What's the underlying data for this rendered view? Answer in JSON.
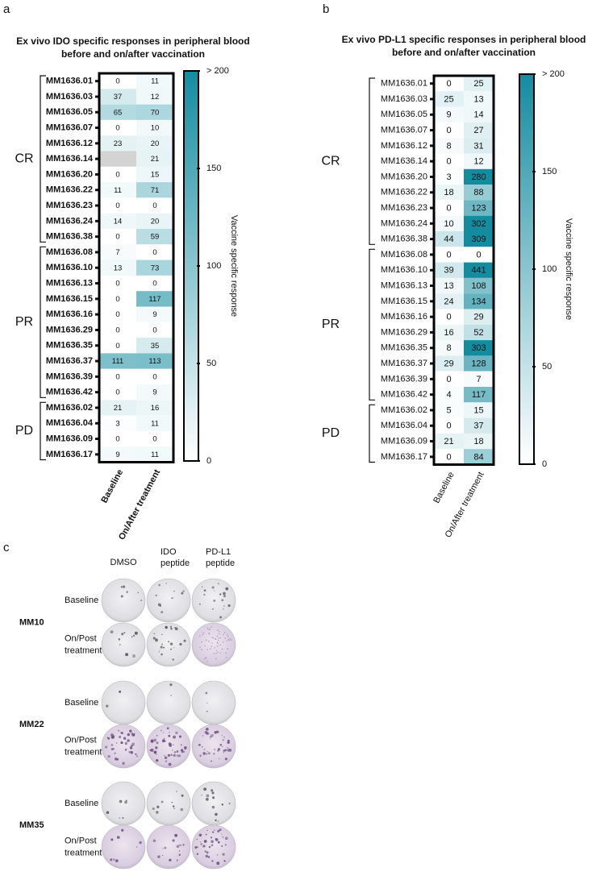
{
  "panel_labels": [
    "a",
    "b",
    "c"
  ],
  "chart_data": [
    {
      "type": "heatmap",
      "bold_labels": true,
      "title": [
        "Ex vivo IDO specific responses in peripheral blood",
        "before and on/after vaccination"
      ],
      "rows": [
        "MM1636.01",
        "MM1636.03",
        "MM1636.05",
        "MM1636.07",
        "MM1636.12",
        "MM1636.14",
        "MM1636.20",
        "MM1636.22",
        "MM1636.23",
        "MM1636.24",
        "MM1636.38",
        "MM1636.08",
        "MM1636.10",
        "MM1636.13",
        "MM1636.15",
        "MM1636.16",
        "MM1636.29",
        "MM1636.35",
        "MM1636.37",
        "MM1636.39",
        "MM1636.42",
        "MM1636.02",
        "MM1636.04",
        "MM1636.09",
        "MM1636.17"
      ],
      "row_groups": [
        "CR",
        "CR",
        "CR",
        "CR",
        "CR",
        "CR",
        "CR",
        "CR",
        "CR",
        "CR",
        "CR",
        "PR",
        "PR",
        "PR",
        "PR",
        "PR",
        "PR",
        "PR",
        "PR",
        "PR",
        "PR",
        "PD",
        "PD",
        "PD",
        "PD"
      ],
      "columns": [
        "Baseline",
        "On/After treatment"
      ],
      "values": [
        [
          0,
          11
        ],
        [
          37,
          12
        ],
        [
          65,
          70
        ],
        [
          0,
          10
        ],
        [
          23,
          20
        ],
        [
          null,
          21
        ],
        [
          0,
          15
        ],
        [
          11,
          71
        ],
        [
          0,
          0
        ],
        [
          14,
          20
        ],
        [
          0,
          59
        ],
        [
          7,
          0
        ],
        [
          13,
          73
        ],
        [
          0,
          0
        ],
        [
          0,
          117
        ],
        [
          0,
          9
        ],
        [
          0,
          0
        ],
        [
          0,
          35
        ],
        [
          111,
          113
        ],
        [
          0,
          0
        ],
        [
          0,
          9
        ],
        [
          21,
          16
        ],
        [
          3,
          11
        ],
        [
          0,
          0
        ],
        [
          9,
          11
        ]
      ],
      "clim": [
        0,
        200
      ],
      "colorbar_ticks": [
        0,
        50,
        100,
        150,
        {
          "value": 200,
          "label": "> 200"
        }
      ],
      "colorbar_label": "Vaccine specific response",
      "colors": [
        "#ffffff",
        "#148ca0"
      ],
      "missing_color": "#d3d3d3"
    },
    {
      "type": "heatmap",
      "bold_labels": false,
      "title": [
        "Ex vivo PD-L1 specific responses in peripheral blood",
        "before and on/after vaccination"
      ],
      "rows": [
        "MM1636.01",
        "MM1636.03",
        "MM1636.05",
        "MM1636.07",
        "MM1636.12",
        "MM1636.14",
        "MM1636.20",
        "MM1636.22",
        "MM1636.23",
        "MM1636.24",
        "MM1636.38",
        "MM1636.08",
        "MM1636.10",
        "MM1636.13",
        "MM1636.15",
        "MM1636.16",
        "MM1636.29",
        "MM1636.35",
        "MM1636.37",
        "MM1636.39",
        "MM1636.42",
        "MM1636.02",
        "MM1636.04",
        "MM1636.09",
        "MM1636.17"
      ],
      "row_groups": [
        "CR",
        "CR",
        "CR",
        "CR",
        "CR",
        "CR",
        "CR",
        "CR",
        "CR",
        "CR",
        "CR",
        "PR",
        "PR",
        "PR",
        "PR",
        "PR",
        "PR",
        "PR",
        "PR",
        "PR",
        "PR",
        "PD",
        "PD",
        "PD",
        "PD"
      ],
      "columns": [
        "Baseline",
        "On/After treatment"
      ],
      "values": [
        [
          0,
          25
        ],
        [
          25,
          13
        ],
        [
          9,
          14
        ],
        [
          0,
          27
        ],
        [
          8,
          31
        ],
        [
          0,
          12
        ],
        [
          3,
          280
        ],
        [
          18,
          88
        ],
        [
          0,
          123
        ],
        [
          10,
          302
        ],
        [
          44,
          309
        ],
        [
          0,
          0
        ],
        [
          39,
          441
        ],
        [
          13,
          108
        ],
        [
          24,
          134
        ],
        [
          0,
          29
        ],
        [
          16,
          52
        ],
        [
          8,
          303
        ],
        [
          29,
          128
        ],
        [
          0,
          7
        ],
        [
          4,
          117
        ],
        [
          5,
          15
        ],
        [
          0,
          37
        ],
        [
          21,
          18
        ],
        [
          0,
          84
        ]
      ],
      "clim": [
        0,
        200
      ],
      "colorbar_ticks": [
        0,
        50,
        100,
        150,
        {
          "value": 200,
          "label": "> 200"
        }
      ],
      "colorbar_label": "Vaccine specific response",
      "colors": [
        "#ffffff",
        "#148ca0"
      ],
      "missing_color": "#d3d3d3"
    }
  ],
  "wells": {
    "columns": [
      [
        "DMSO"
      ],
      [
        "IDO",
        "peptide"
      ],
      [
        "PD-L1",
        "peptide"
      ]
    ],
    "patients": [
      {
        "name": "MM10",
        "rows": [
          [
            "Baseline"
          ],
          [
            "On/Post",
            "treatment"
          ]
        ]
      },
      {
        "name": "MM22",
        "rows": [
          [
            "Baseline"
          ],
          [
            "On/Post",
            "treatment"
          ]
        ]
      },
      {
        "name": "MM35",
        "rows": [
          [
            "Baseline"
          ],
          [
            "On/Post",
            "treatment"
          ]
        ]
      }
    ]
  }
}
